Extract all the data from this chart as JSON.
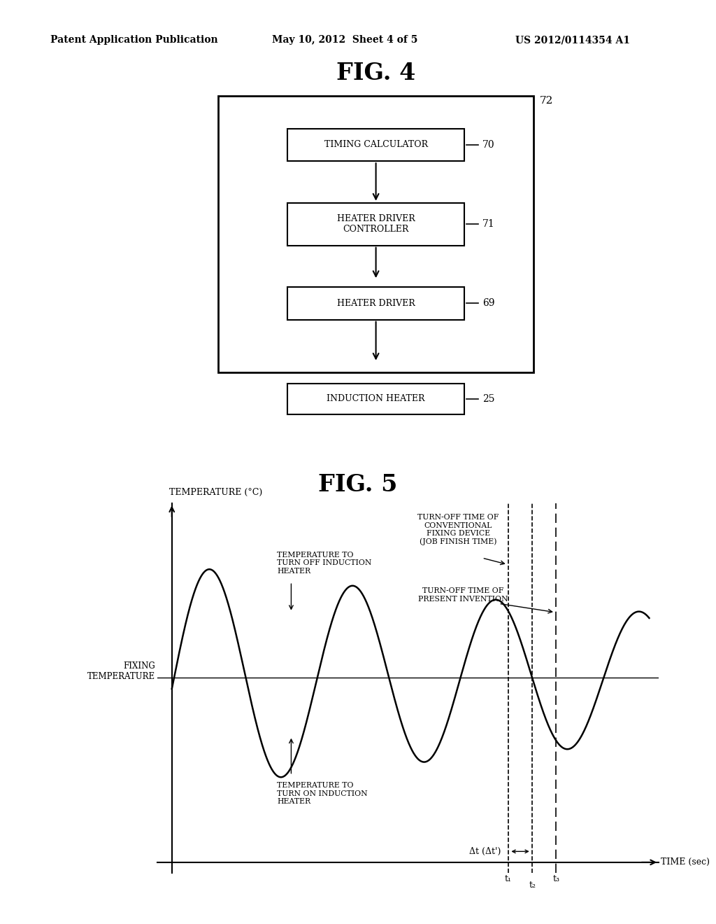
{
  "bg_color": "#ffffff",
  "header_left": "Patent Application Publication",
  "header_mid": "May 10, 2012  Sheet 4 of 5",
  "header_right": "US 2012/0114354 A1",
  "fig4_title": "FIG. 4",
  "fig5_title": "FIG. 5",
  "block_labels": [
    "TIMING CALCULATOR",
    "HEATER DRIVER\nCONTROLLER",
    "HEATER DRIVER",
    "INDUCTION HEATER"
  ],
  "block_numbers": [
    "70",
    "71",
    "69",
    "25"
  ],
  "outer_box_label": "72",
  "fixing_temp_label": "FIXING\nTEMPERATURE",
  "temp_axis_label": "TEMPERATURE (°C)",
  "time_axis_label": "TIME (sec)",
  "turn_off_conventional": "TURN-OFF TIME OF\nCONVENTIONAL\nFIXING DEVICE\n(JOB FINISH TIME)",
  "turn_off_present": "TURN-OFF TIME OF\nPRESENT INVENTION",
  "temp_turn_off": "TEMPERATURE TO\nTURN OFF INDUCTION\nHEATER",
  "temp_turn_on": "TEMPERATURE TO\nTURN ON INDUCTION\nHEATER",
  "delta_t_label": "Δt (Δt')",
  "t1_label": "t₁",
  "t2_label": "t₂",
  "t3_label": "t₃"
}
